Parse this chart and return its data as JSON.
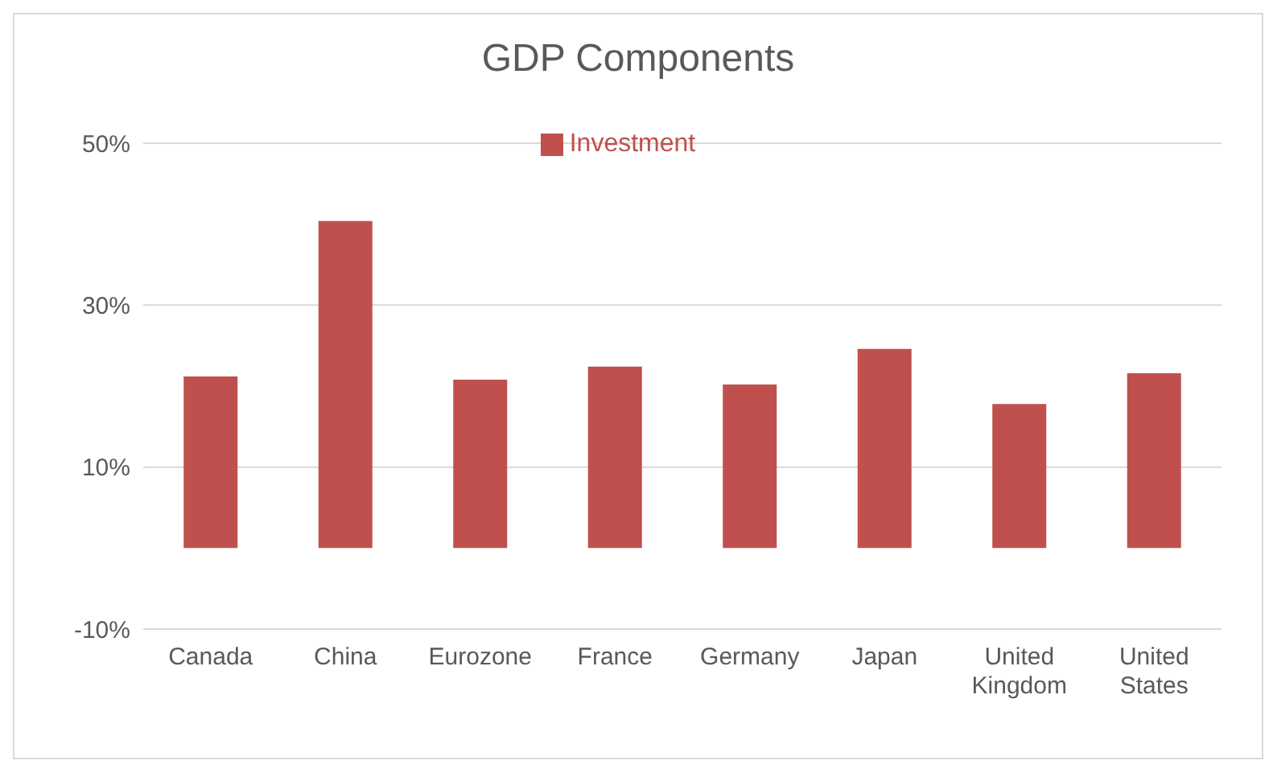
{
  "chart_data": {
    "type": "bar",
    "title": "GDP Components",
    "categories": [
      "Canada",
      "China",
      "Eurozone",
      "France",
      "Germany",
      "Japan",
      "United Kingdom",
      "United States"
    ],
    "series": [
      {
        "name": "Investment",
        "color": "#c0504d",
        "values": [
          21.2,
          40.4,
          20.8,
          22.4,
          20.2,
          24.6,
          17.8,
          21.6
        ]
      }
    ],
    "ylim": [
      -10,
      50
    ],
    "yticks": [
      {
        "value": -10,
        "label": "-10%"
      },
      {
        "value": 10,
        "label": "10%"
      },
      {
        "value": 30,
        "label": "30%"
      },
      {
        "value": 50,
        "label": "50%"
      }
    ],
    "grid": "y",
    "legend": "top"
  }
}
